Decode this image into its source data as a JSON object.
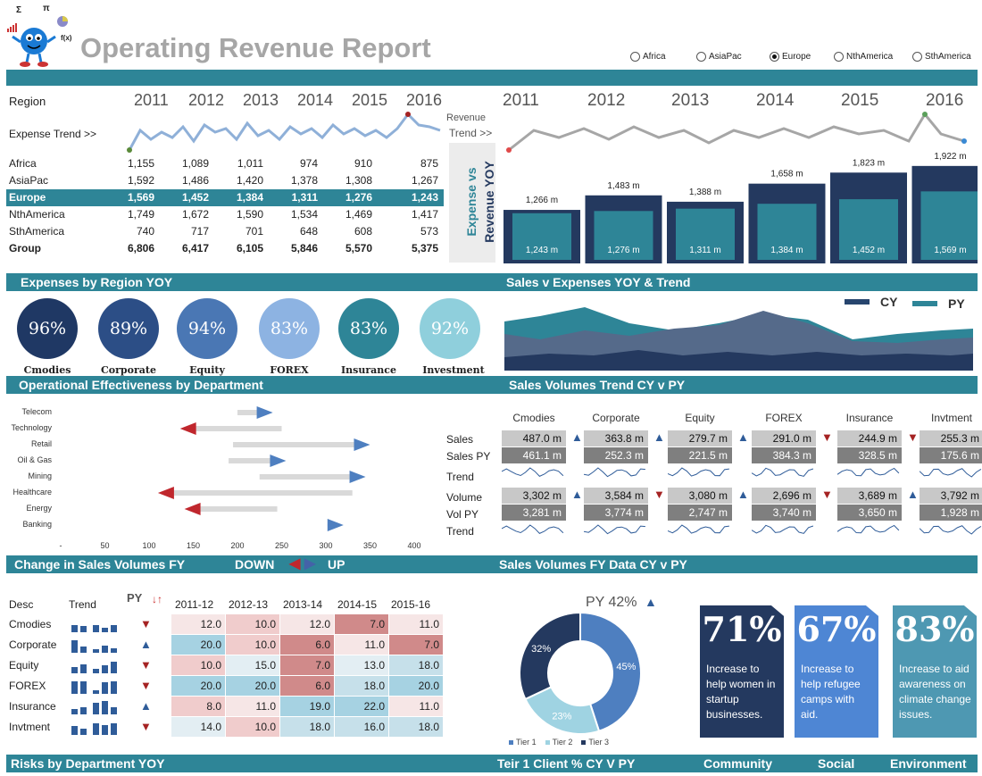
{
  "title": "Operating Revenue Report",
  "logo": {
    "symbols": [
      "Σ",
      "π",
      "f(x)"
    ]
  },
  "regions_radio": [
    {
      "label": "Africa",
      "selected": false
    },
    {
      "label": "AsiaPac",
      "selected": false
    },
    {
      "label": "Europe",
      "selected": true
    },
    {
      "label": "NthAmerica",
      "selected": false
    },
    {
      "label": "SthAmerica",
      "selected": false
    }
  ],
  "region_table": {
    "region_label": "Region",
    "years": [
      "2011",
      "2012",
      "2013",
      "2014",
      "2015",
      "2016"
    ],
    "expense_trend_label": "Expense Trend >>",
    "rows": [
      {
        "name": "Africa",
        "values": [
          "1,155",
          "1,089",
          "1,011",
          "974",
          "910",
          "875"
        ]
      },
      {
        "name": "AsiaPac",
        "values": [
          "1,592",
          "1,486",
          "1,420",
          "1,378",
          "1,308",
          "1,267"
        ]
      },
      {
        "name": "Europe",
        "values": [
          "1,569",
          "1,452",
          "1,384",
          "1,311",
          "1,276",
          "1,243"
        ]
      },
      {
        "name": "NthAmerica",
        "values": [
          "1,749",
          "1,672",
          "1,590",
          "1,534",
          "1,469",
          "1,417"
        ]
      },
      {
        "name": "SthAmerica",
        "values": [
          "740",
          "717",
          "701",
          "648",
          "608",
          "573"
        ]
      },
      {
        "name": "Group",
        "values": [
          "6,806",
          "6,417",
          "6,105",
          "5,846",
          "5,570",
          "5,375"
        ]
      }
    ]
  },
  "revenue_section": {
    "revenue_label": "Revenue",
    "trend_label": "Trend >>",
    "vertical_label_1": "Expense vs",
    "vertical_label_2": "Revenue YOY",
    "years": [
      "2011",
      "2012",
      "2013",
      "2014",
      "2015",
      "2016"
    ],
    "revenue_labels": [
      "1,266 m",
      "1,483 m",
      "1,388 m",
      "1,658 m",
      "1,823 m",
      "1,922 m"
    ],
    "expense_labels": [
      "1,243 m",
      "1,276 m",
      "1,311 m",
      "1,384 m",
      "1,452 m",
      "1,569 m"
    ],
    "revenue_values": [
      1266,
      1483,
      1388,
      1658,
      1823,
      1922
    ],
    "expense_values": [
      1243,
      1276,
      1311,
      1384,
      1452,
      1569
    ]
  },
  "bars": {
    "expenses_by_region": "Expenses by Region YOY",
    "sales_v_expenses": "Sales v Expenses YOY & Trend",
    "operational": "Operational Effectiveness by Department",
    "sales_volumes_trend": "Sales Volumes Trend CY v PY",
    "change_sales": "Change in Sales Volumes FY",
    "down": "DOWN",
    "up": "UP",
    "sales_fy": "Sales Volumes FY Data CY v PY",
    "risks": "Risks by Department YOY",
    "teir": "Teir 1 Client % CY V PY",
    "community": "Community",
    "social": "Social",
    "environment": "Environment"
  },
  "circles": [
    {
      "pct": "96%",
      "label": "Cmodies",
      "color": "#1f3864"
    },
    {
      "pct": "89%",
      "label": "Corporate",
      "color": "#2c4e86"
    },
    {
      "pct": "94%",
      "label": "Equity",
      "color": "#4a77b4"
    },
    {
      "pct": "83%",
      "label": "FOREX",
      "color": "#8db3e2"
    },
    {
      "pct": "83%",
      "label": "Insurance",
      "color": "#2e8597"
    },
    {
      "pct": "92%",
      "label": "Investment",
      "color": "#8fcfdc"
    }
  ],
  "legend": {
    "cy": "CY",
    "py": "PY",
    "cy_color": "#27456e",
    "py_color": "#2e8597"
  },
  "departments": {
    "labels": [
      "Telecom",
      "Technology",
      "Retail",
      "Oil & Gas",
      "Mining",
      "Healthcare",
      "Energy",
      "Banking"
    ],
    "axis": [
      "-",
      "50",
      "100",
      "150",
      "200",
      "250",
      "300",
      "350",
      "400"
    ],
    "arrows": [
      {
        "from": 200,
        "to": 240,
        "dir": "right"
      },
      {
        "from": 250,
        "to": 135,
        "dir": "left"
      },
      {
        "from": 195,
        "to": 350,
        "dir": "right"
      },
      {
        "from": 190,
        "to": 255,
        "dir": "right"
      },
      {
        "from": 225,
        "to": 345,
        "dir": "right"
      },
      {
        "from": 330,
        "to": 110,
        "dir": "left"
      },
      {
        "from": 245,
        "to": 140,
        "dir": "left"
      },
      {
        "from": 305,
        "to": 320,
        "dir": "right"
      }
    ]
  },
  "sales_volumes": {
    "columns": [
      "Cmodies",
      "Corporate",
      "Equity",
      "FOREX",
      "Insurance",
      "Invtment"
    ],
    "row_labels": [
      "Sales",
      "Sales PY",
      "Trend",
      "Volume",
      "Vol PY",
      "Trend"
    ],
    "sales": [
      "487.0 m",
      "363.8 m",
      "279.7 m",
      "291.0 m",
      "244.9 m",
      "255.3 m"
    ],
    "sales_py": [
      "461.1 m",
      "252.3 m",
      "221.5 m",
      "384.3 m",
      "328.5 m",
      "175.6 m"
    ],
    "sales_dir": [
      "up",
      "up",
      "up",
      "down",
      "down",
      "up"
    ],
    "volume": [
      "3,302 m",
      "3,584 m",
      "3,080 m",
      "2,696 m",
      "3,689 m",
      "3,792 m"
    ],
    "vol_py": [
      "3,281 m",
      "3,774 m",
      "2,747 m",
      "3,740 m",
      "3,650 m",
      "1,928 m"
    ],
    "vol_dir": [
      "up",
      "down",
      "up",
      "down",
      "up",
      "up"
    ]
  },
  "change_table": {
    "headers": [
      "Desc",
      "Trend",
      "PY",
      "2011-12",
      "2012-13",
      "2013-14",
      "2014-15",
      "2015-16"
    ],
    "py_icon": "↓↑",
    "rows": [
      {
        "name": "Cmodies",
        "dir": "down",
        "values": [
          "12.0",
          "10.0",
          "12.0",
          "7.0",
          "11.0"
        ]
      },
      {
        "name": "Corporate",
        "dir": "up",
        "values": [
          "20.0",
          "10.0",
          "6.0",
          "11.0",
          "7.0"
        ]
      },
      {
        "name": "Equity",
        "dir": "down",
        "values": [
          "10.0",
          "15.0",
          "7.0",
          "13.0",
          "18.0"
        ]
      },
      {
        "name": "FOREX",
        "dir": "down",
        "values": [
          "20.0",
          "20.0",
          "6.0",
          "18.0",
          "20.0"
        ]
      },
      {
        "name": "Insurance",
        "dir": "up",
        "values": [
          "8.0",
          "11.0",
          "19.0",
          "22.0",
          "11.0"
        ]
      },
      {
        "name": "Invtment",
        "dir": "down",
        "values": [
          "14.0",
          "10.0",
          "18.0",
          "16.0",
          "18.0"
        ]
      }
    ]
  },
  "donut": {
    "header": "PY 42%",
    "slices": [
      {
        "name": "Tier 1",
        "value": 45,
        "label": "45%",
        "color": "#4e7fc0"
      },
      {
        "name": "Tier 2",
        "value": 23,
        "label": "23%",
        "color": "#9fd3e2"
      },
      {
        "name": "Tier 3",
        "value": 32,
        "label": "32%",
        "color": "#24395f"
      }
    ]
  },
  "cards": [
    {
      "pct": "71%",
      "text": "Increase to help women in startup businesses.",
      "color": "#24395f"
    },
    {
      "pct": "67%",
      "text": "Increase to help refugee camps with aid.",
      "color": "#4e86d4"
    },
    {
      "pct": "83%",
      "text": "Increase to aid awareness on climate change issues.",
      "color": "#4e98b2"
    }
  ]
}
